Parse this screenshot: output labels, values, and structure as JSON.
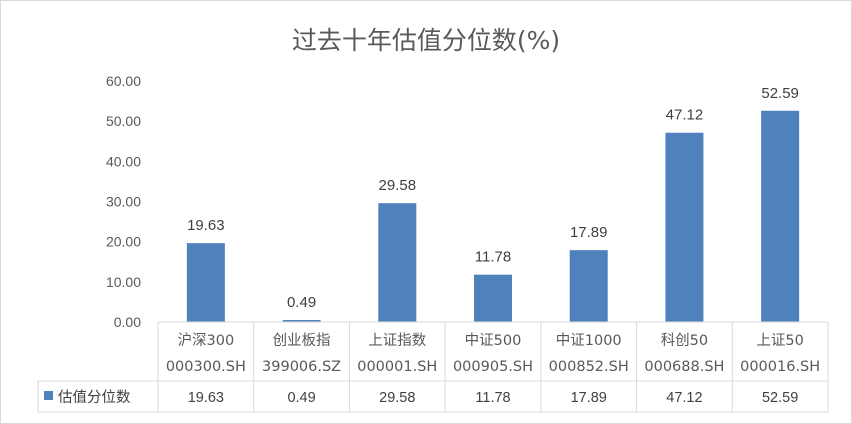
{
  "chart_data": {
    "type": "bar",
    "title": "过去十年估值分位数(%)",
    "categories": [
      [
        "沪深300",
        "000300.SH"
      ],
      [
        "创业板指",
        "399006.SZ"
      ],
      [
        "上证指数",
        "000001.SH"
      ],
      [
        "中证500",
        "000905.SH"
      ],
      [
        "中证1000",
        "000852.SH"
      ],
      [
        "科创50",
        "000688.SH"
      ],
      [
        "上证50",
        "000016.SH"
      ]
    ],
    "series": [
      {
        "name": "估值分位数",
        "color": "#4f81bd",
        "values": [
          19.63,
          0.49,
          29.58,
          11.78,
          17.89,
          47.12,
          52.59
        ],
        "value_labels": [
          "19.63",
          "0.49",
          "29.58",
          "11.78",
          "17.89",
          "47.12",
          "52.59"
        ]
      }
    ],
    "ylim": [
      0,
      60
    ],
    "yticks": [
      "0.00",
      "10.00",
      "20.00",
      "30.00",
      "40.00",
      "50.00",
      "60.00"
    ],
    "grid": false,
    "data_table": true,
    "legend_placement": "data-table-left"
  }
}
